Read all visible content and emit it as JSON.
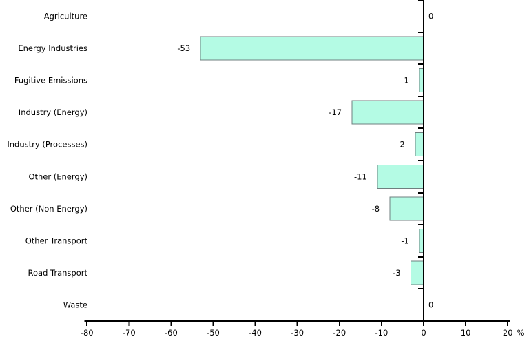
{
  "chart_data": {
    "type": "bar",
    "orientation": "horizontal",
    "title": "",
    "xlabel": "%",
    "ylabel": "",
    "categories": [
      "Agriculture",
      "Energy Industries",
      "Fugitive Emissions",
      "Industry (Energy)",
      "Industry (Processes)",
      "Other (Energy)",
      "Other (Non Energy)",
      "Other Transport",
      "Road Transport",
      "Waste"
    ],
    "values": [
      0,
      -53,
      -1,
      -17,
      -2,
      -11,
      -8,
      -1,
      -3,
      0
    ],
    "data_labels": [
      "0",
      "-53",
      "-1",
      "-17",
      "-2",
      "-11",
      "-8",
      "-1",
      "-3",
      "0"
    ],
    "x_ticks": [
      -80,
      -70,
      -60,
      -50,
      -40,
      -30,
      -20,
      -10,
      0,
      10,
      20
    ],
    "x_tick_labels": [
      "-80",
      "-70",
      "-60",
      "-50",
      "-40",
      "-30",
      "-20",
      "-10",
      "0",
      "10",
      "20"
    ],
    "xlim": [
      -80,
      20
    ],
    "grid": false,
    "legend": false,
    "colors": {
      "bar_fill": "#b4fbe4",
      "bar_border": "#6f7f7f",
      "axis": "#000000",
      "text": "#000000",
      "background": "#ffffff"
    }
  }
}
